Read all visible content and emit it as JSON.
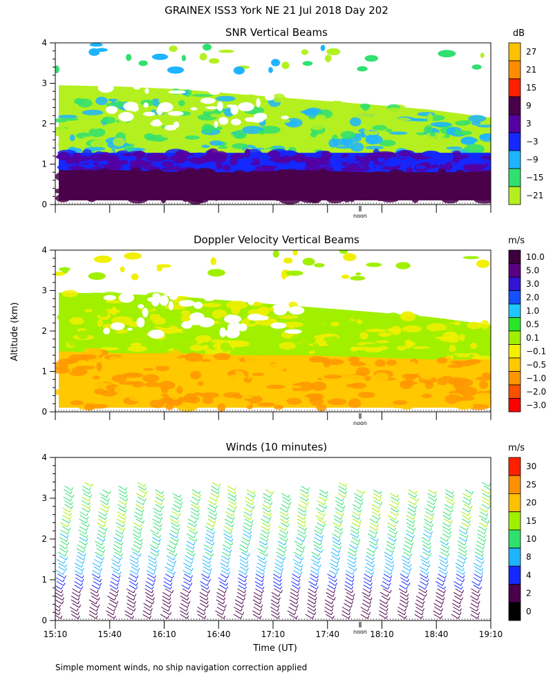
{
  "main_title": "GRAINEX ISS3 York NE  21 Jul 2018 Day 202",
  "ylabel": "Altitude (km)",
  "xlabel": "Time (UT)",
  "footnote": "Simple moment winds, no ship navigation correction applied",
  "noon_label": "noon",
  "x_ticks": [
    "15:10",
    "15:40",
    "16:10",
    "16:40",
    "17:10",
    "17:40",
    "18:10",
    "18:40",
    "19:10"
  ],
  "y_ticks": [
    "0",
    "1",
    "2",
    "3",
    "4"
  ],
  "chart_data": [
    {
      "type": "heatmap",
      "title": "SNR Vertical Beams",
      "unit": "dB",
      "ylim": [
        0,
        4
      ],
      "legend": {
        "labels": [
          "27",
          "21",
          "15",
          "9",
          "3",
          "−3",
          "−9",
          "−15",
          "−21"
        ],
        "colors": [
          "#ffc000",
          "#ff8c00",
          "#ff2000",
          "#4a004a",
          "#5500a0",
          "#1428ff",
          "#1eb4ff",
          "#30e070",
          "#b4f020"
        ]
      },
      "layers": [
        {
          "top": [
            2.95,
            2.92,
            2.85,
            2.72,
            2.6,
            2.48,
            2.35,
            2.15
          ],
          "colors": [
            "#b4f020",
            "#30e070",
            "#1eb4ff"
          ]
        },
        {
          "top": [
            1.28,
            1.28,
            1.28,
            1.28,
            1.28,
            1.28,
            1.28,
            1.28
          ],
          "colors": [
            "#1428ff",
            "#5500a0"
          ]
        },
        {
          "top": [
            0.85,
            0.85,
            0.8,
            0.8,
            0.85,
            0.8,
            0.8,
            0.8
          ],
          "colors": [
            "#4a004a"
          ]
        }
      ]
    },
    {
      "type": "heatmap",
      "title": "Doppler Velocity Vertical Beams",
      "unit": "m/s",
      "ylim": [
        0,
        4
      ],
      "legend": {
        "labels": [
          "10.0",
          "5.0",
          "3.0",
          "2.0",
          "1.0",
          "0.5",
          "0.1",
          "−0.1",
          "−0.5",
          "−1.0",
          "−2.0",
          "−3.0"
        ],
        "colors": [
          "#3c003c",
          "#5a0082",
          "#3214d2",
          "#1450ff",
          "#1ec8ff",
          "#28e628",
          "#a0f000",
          "#f0f000",
          "#ffc800",
          "#ff9600",
          "#ff5000",
          "#ff0000"
        ]
      },
      "layers": [
        {
          "top": [
            2.95,
            2.92,
            2.85,
            2.72,
            2.6,
            2.48,
            2.35,
            2.15
          ],
          "colors": [
            "#a0f000",
            "#f0f000"
          ]
        },
        {
          "top": [
            1.5,
            1.45,
            1.45,
            1.4,
            1.4,
            1.35,
            1.3,
            1.3
          ],
          "colors": [
            "#ffc800",
            "#ff9600"
          ]
        }
      ]
    },
    {
      "type": "scatter",
      "title": "Winds (10 minutes)",
      "unit": "m/s",
      "ylim": [
        0,
        4
      ],
      "legend": {
        "labels": [
          "30",
          "25",
          "20",
          "15",
          "10",
          "8",
          "4",
          "2",
          "0"
        ],
        "colors": [
          "#ff2000",
          "#ff9000",
          "#ffc000",
          "#a0f000",
          "#30e070",
          "#1eb4ff",
          "#1428ff",
          "#4a004a",
          "#000000"
        ]
      },
      "profile_times": [
        "15:10",
        "15:20",
        "15:30",
        "15:40",
        "15:50",
        "16:00",
        "16:10",
        "16:20",
        "16:30",
        "16:40",
        "16:50",
        "17:00",
        "17:10",
        "17:20",
        "17:30",
        "17:40",
        "17:50",
        "18:00",
        "18:10",
        "18:20",
        "18:30",
        "18:40",
        "18:50",
        "19:00"
      ]
    }
  ]
}
